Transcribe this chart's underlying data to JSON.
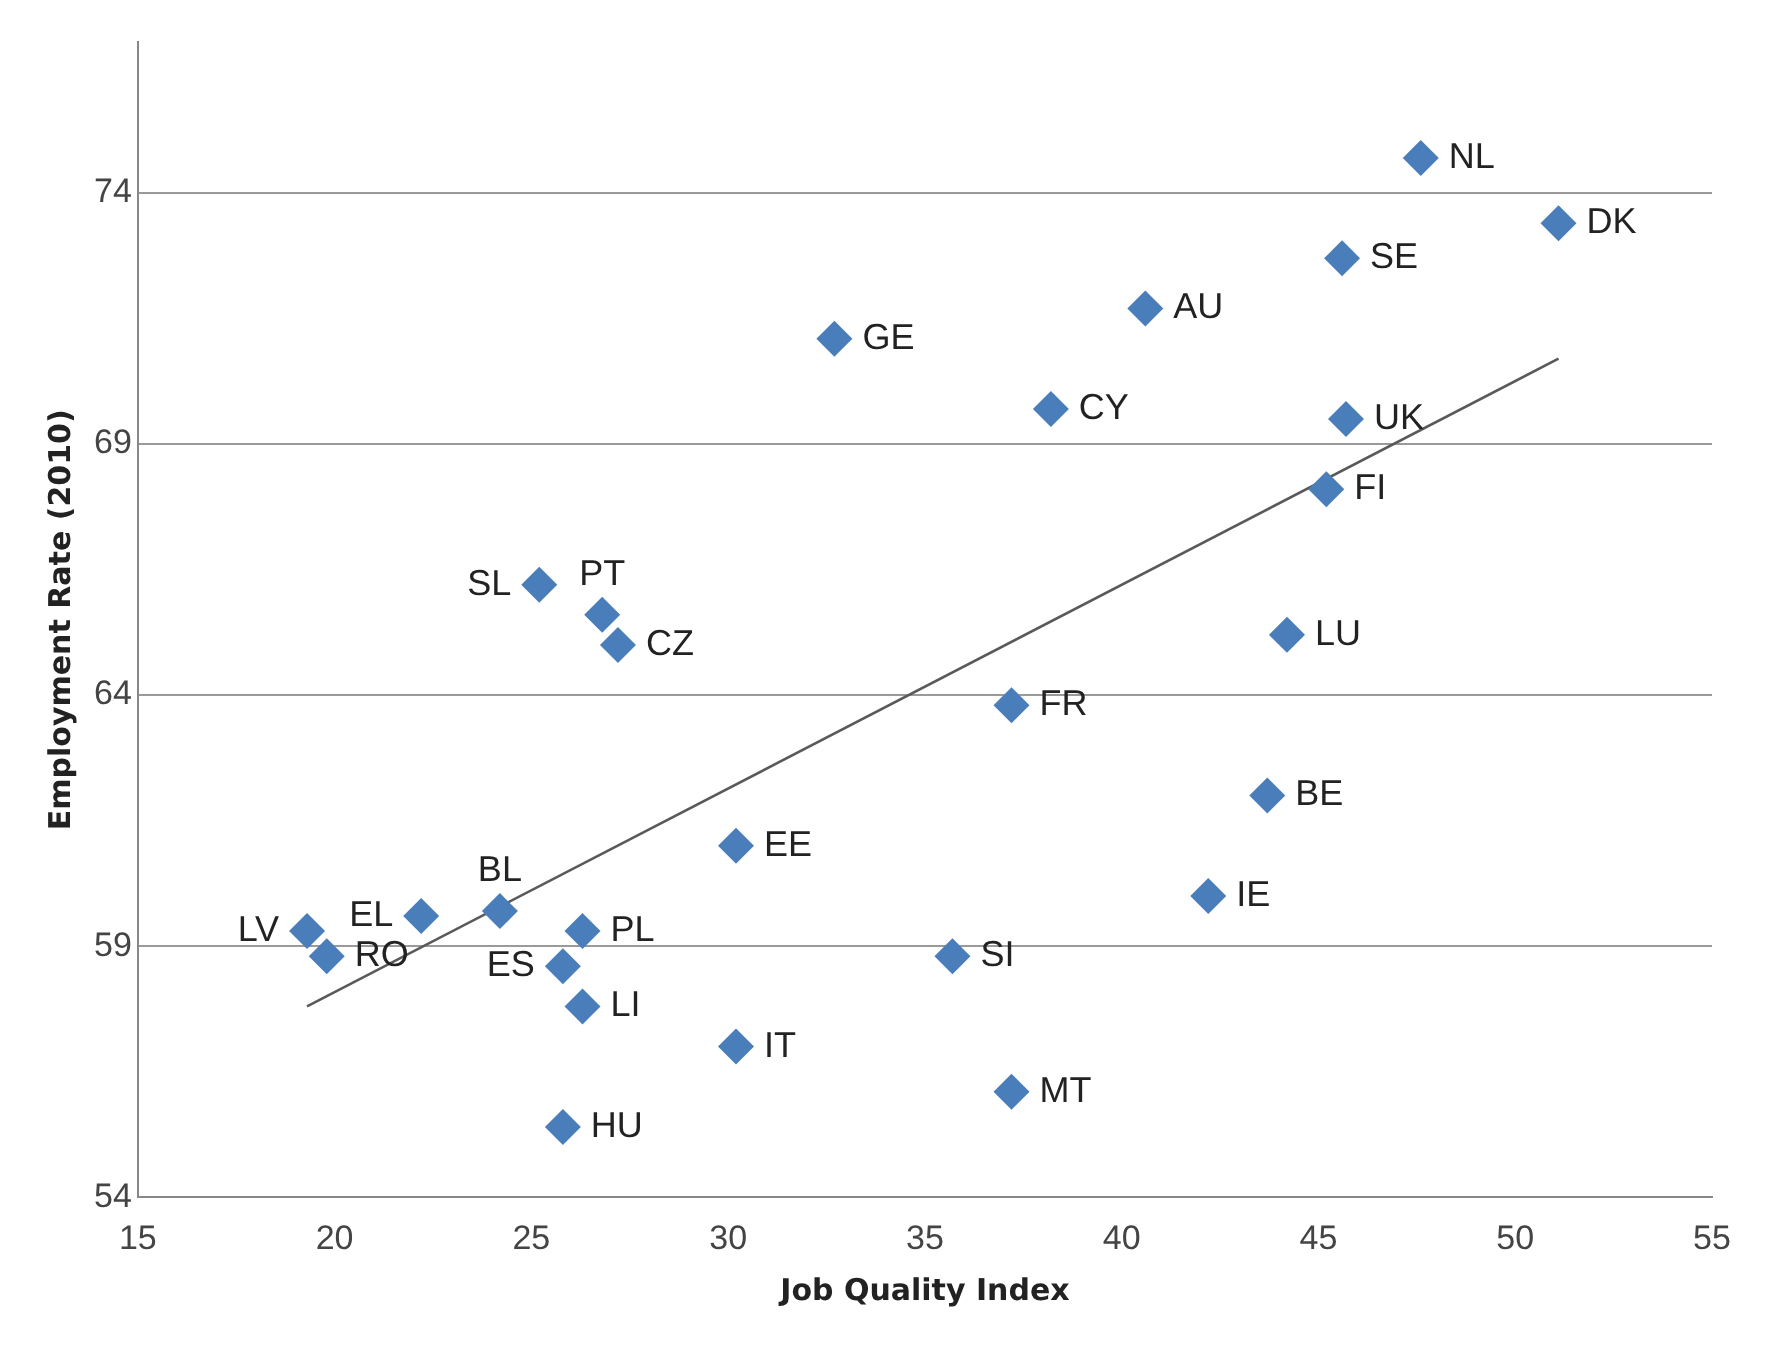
{
  "chart_data": {
    "type": "scatter",
    "xlabel": "Job Quality Index",
    "ylabel": "Employment Rate (2010)",
    "xlim": [
      15,
      55
    ],
    "xticks": [
      15,
      20,
      25,
      30,
      35,
      40,
      45,
      50,
      55
    ],
    "ylim": [
      54,
      77
    ],
    "yticks": [
      54,
      59,
      64,
      69,
      74
    ],
    "grid": "y",
    "marker": "diamond",
    "legend": false,
    "series": [
      {
        "color": "#4a7ebb",
        "x": [
          47.6,
          51.1,
          45.6,
          40.6,
          32.7,
          38.2,
          45.7,
          45.2,
          25.2,
          26.8,
          27.2,
          44.2,
          37.2,
          43.7,
          30.2,
          42.2,
          19.3,
          19.8,
          22.2,
          24.2,
          26.3,
          25.8,
          35.7,
          26.3,
          30.2,
          37.2,
          25.8
        ],
        "values": [
          74.7,
          73.4,
          72.7,
          71.7,
          71.1,
          69.7,
          69.5,
          68.1,
          66.2,
          65.6,
          65.0,
          65.2,
          63.8,
          62.0,
          61.0,
          60.0,
          59.3,
          58.8,
          59.6,
          59.7,
          59.3,
          58.6,
          58.8,
          57.8,
          57.0,
          56.1,
          55.4
        ]
      },
      {
        "type": "line",
        "color": "#595959",
        "x": [
          19.3,
          51.1
        ],
        "values": [
          57.8,
          70.7
        ],
        "marker": "none"
      }
    ],
    "annotations": [
      {
        "text": "NL",
        "x": 47.6,
        "y": 74.7
      },
      {
        "text": "DK",
        "x": 51.1,
        "y": 73.4
      },
      {
        "text": "SE",
        "x": 45.6,
        "y": 72.7
      },
      {
        "text": "AU",
        "x": 40.6,
        "y": 71.7
      },
      {
        "text": "GE",
        "x": 32.7,
        "y": 71.1
      },
      {
        "text": "CY",
        "x": 38.2,
        "y": 69.7
      },
      {
        "text": "UK",
        "x": 45.7,
        "y": 69.5
      },
      {
        "text": "FI",
        "x": 45.2,
        "y": 68.1
      },
      {
        "text": "SL",
        "x": 25.2,
        "y": 66.2
      },
      {
        "text": "PT",
        "x": 26.8,
        "y": 65.6
      },
      {
        "text": "CZ",
        "x": 27.2,
        "y": 65.0
      },
      {
        "text": "LU",
        "x": 44.2,
        "y": 65.2
      },
      {
        "text": "FR",
        "x": 37.2,
        "y": 63.8
      },
      {
        "text": "BE",
        "x": 43.7,
        "y": 62.0
      },
      {
        "text": "EE",
        "x": 30.2,
        "y": 61.0
      },
      {
        "text": "IE",
        "x": 42.2,
        "y": 60.0
      },
      {
        "text": "LV",
        "x": 19.3,
        "y": 59.3
      },
      {
        "text": "RO",
        "x": 19.8,
        "y": 58.8
      },
      {
        "text": "EL",
        "x": 22.2,
        "y": 59.6
      },
      {
        "text": "BL",
        "x": 24.2,
        "y": 59.7
      },
      {
        "text": "PL",
        "x": 26.3,
        "y": 59.3
      },
      {
        "text": "ES",
        "x": 25.8,
        "y": 58.6
      },
      {
        "text": "SI",
        "x": 35.7,
        "y": 58.8
      },
      {
        "text": "LI",
        "x": 26.3,
        "y": 57.8
      },
      {
        "text": "IT",
        "x": 30.2,
        "y": 57.0
      },
      {
        "text": "MT",
        "x": 37.2,
        "y": 56.1
      },
      {
        "text": "HU",
        "x": 25.8,
        "y": 55.4
      }
    ]
  }
}
